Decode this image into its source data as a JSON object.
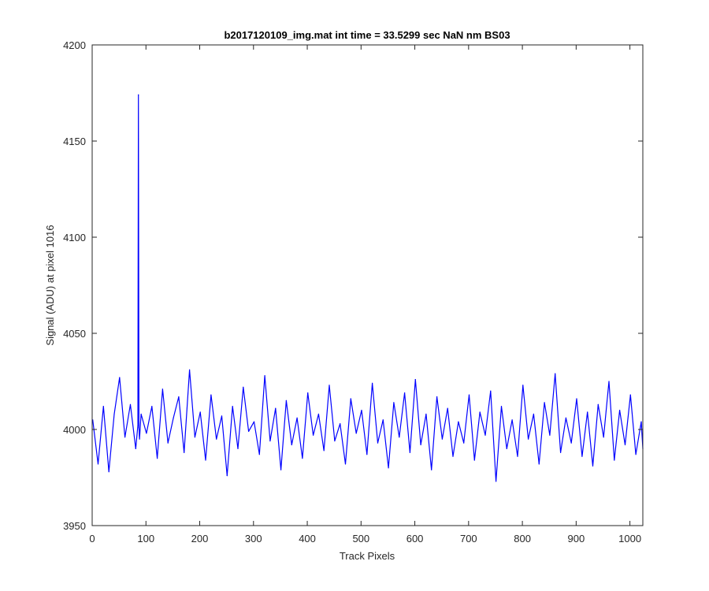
{
  "chart_data": {
    "type": "line",
    "title": "b2017120109_img.mat int time = 33.5299 sec  NaN nm BS03",
    "xlabel": "Track Pixels",
    "ylabel": "Signal (ADU) at pixel 1016",
    "xlim": [
      0,
      1024
    ],
    "ylim": [
      3950,
      4200
    ],
    "xticks": [
      0,
      100,
      200,
      300,
      400,
      500,
      600,
      700,
      800,
      900,
      1000
    ],
    "yticks": [
      3950,
      4000,
      4050,
      4100,
      4150,
      4200
    ],
    "grid": false,
    "legend": "none",
    "line_color": "#0000ff",
    "series": [
      {
        "x": [
          1,
          11,
          21,
          31,
          41,
          51,
          61,
          71,
          81,
          85,
          86,
          87,
          88,
          91,
          101,
          111,
          121,
          131,
          141,
          151,
          161,
          171,
          181,
          191,
          201,
          211,
          221,
          231,
          241,
          251,
          261,
          271,
          281,
          291,
          301,
          311,
          321,
          331,
          341,
          351,
          361,
          371,
          381,
          391,
          401,
          411,
          421,
          431,
          441,
          451,
          461,
          471,
          481,
          491,
          501,
          511,
          521,
          531,
          541,
          551,
          561,
          571,
          581,
          591,
          601,
          611,
          621,
          631,
          641,
          651,
          661,
          671,
          681,
          691,
          701,
          711,
          721,
          731,
          741,
          751,
          761,
          771,
          781,
          791,
          801,
          811,
          821,
          831,
          841,
          851,
          861,
          871,
          881,
          891,
          901,
          911,
          921,
          931,
          941,
          951,
          961,
          971,
          981,
          991,
          1001,
          1011,
          1021,
          1024
        ],
        "y": [
          4005,
          3982,
          4012,
          3978,
          4008,
          4027,
          3996,
          4013,
          3990,
          4002,
          4174,
          4001,
          3995,
          4008,
          3998,
          4012,
          3985,
          4021,
          3993,
          4006,
          4017,
          3988,
          4031,
          3996,
          4009,
          3984,
          4018,
          3995,
          4007,
          3976,
          4012,
          3990,
          4022,
          3999,
          4004,
          3987,
          4028,
          3994,
          4011,
          3979,
          4015,
          3992,
          4006,
          3985,
          4019,
          3997,
          4008,
          3989,
          4023,
          3994,
          4003,
          3982,
          4016,
          3998,
          4010,
          3987,
          4024,
          3993,
          4005,
          3980,
          4014,
          3996,
          4019,
          3988,
          4026,
          3992,
          4008,
          3979,
          4017,
          3995,
          4011,
          3986,
          4004,
          3993,
          4018,
          3984,
          4009,
          3997,
          4020,
          3973,
          4012,
          3990,
          4005,
          3986,
          4023,
          3995,
          4008,
          3982,
          4014,
          3997,
          4029,
          3988,
          4006,
          3993,
          4016,
          3986,
          4009,
          3981,
          4013,
          3996,
          4025,
          3984,
          4010,
          3992,
          4018,
          3987,
          4004,
          3990
        ]
      }
    ]
  }
}
